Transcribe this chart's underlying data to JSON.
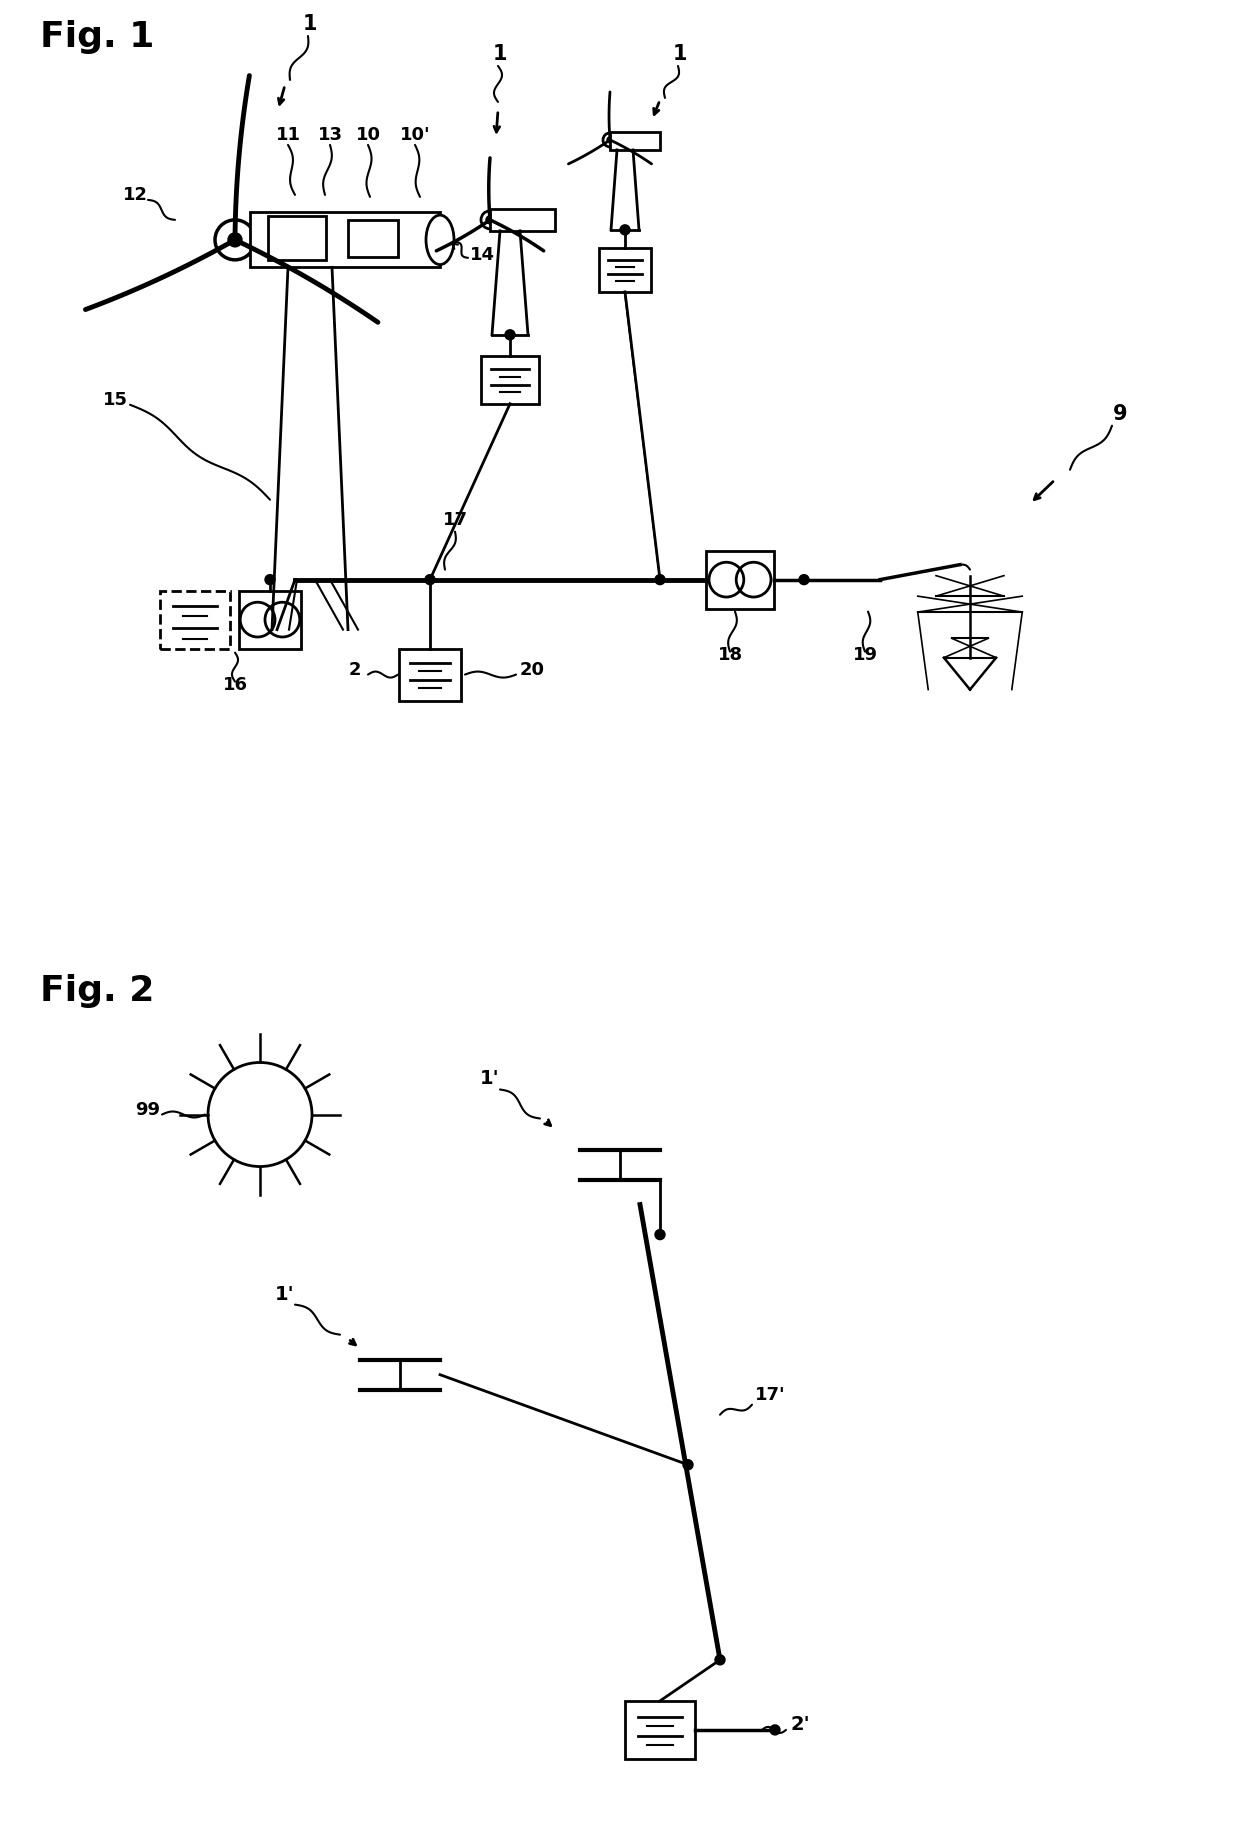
{
  "bg": "#ffffff",
  "lc": "#000000",
  "lw": 1.8,
  "tlw": 2.5
}
